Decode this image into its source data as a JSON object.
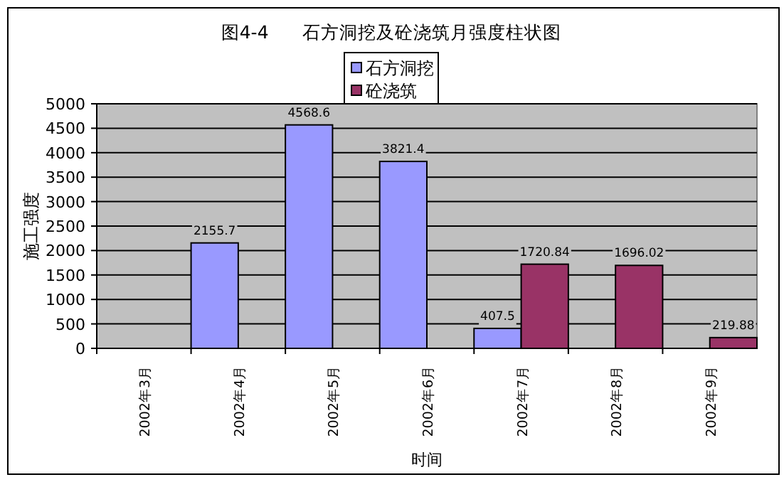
{
  "chart_data": {
    "type": "bar",
    "title": "图4-4      石方洞挖及砼浇筑月强度柱状图",
    "xlabel": "时间",
    "ylabel": "施工强度",
    "categories": [
      "2002年3月",
      "2002年4月",
      "2002年5月",
      "2002年6月",
      "2002年7月",
      "2002年8月",
      "2002年9月"
    ],
    "series": [
      {
        "name": "石方洞挖",
        "color": "#9999ff",
        "values": [
          null,
          2155.7,
          4568.6,
          3821.4,
          407.5,
          null,
          null
        ]
      },
      {
        "name": "砼浇筑",
        "color": "#993366",
        "values": [
          null,
          null,
          null,
          null,
          1720.84,
          1696.02,
          219.88
        ]
      }
    ],
    "ylim": [
      0,
      5000
    ],
    "yticks": [
      0,
      500,
      1000,
      1500,
      2000,
      2500,
      3000,
      3500,
      4000,
      4500,
      5000
    ],
    "grid": "y",
    "legend": "top",
    "data_labels": true
  }
}
